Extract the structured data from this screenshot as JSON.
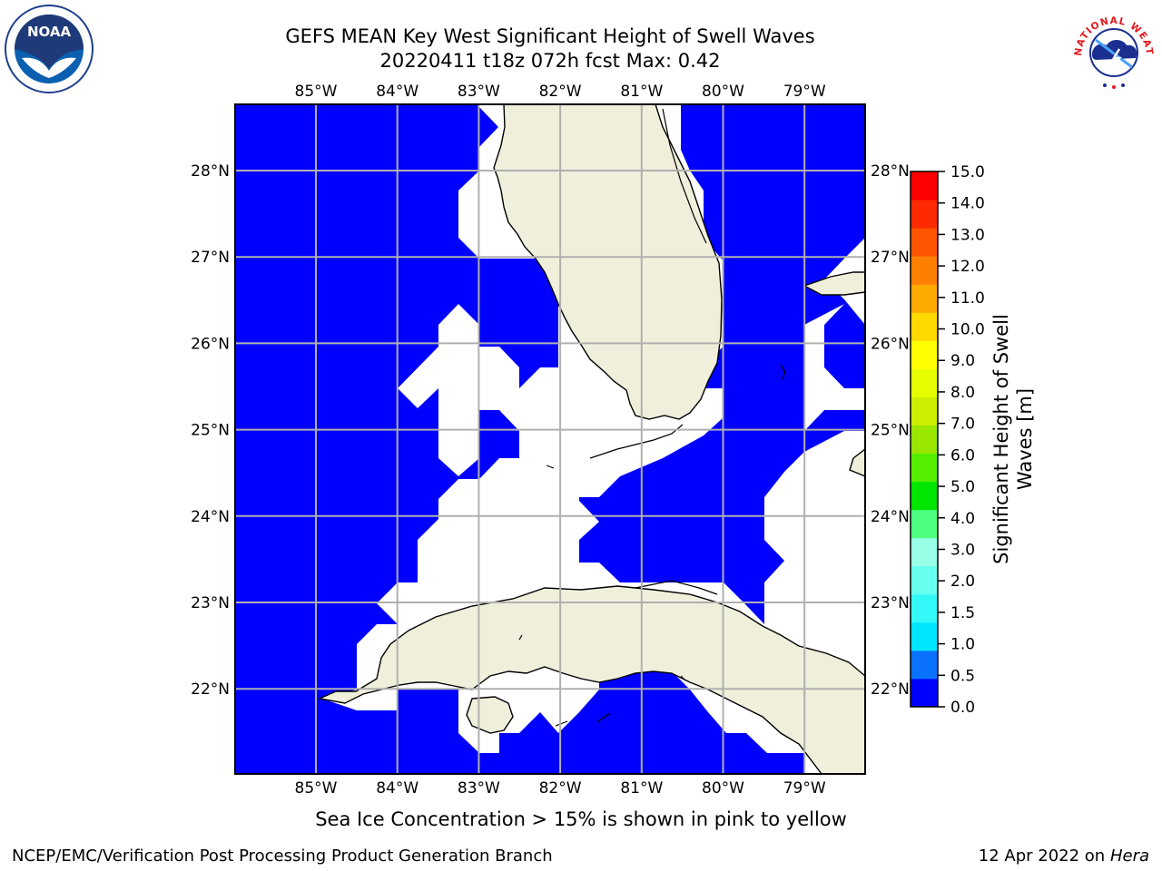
{
  "title": {
    "line1": "GEFS MEAN Key West Significant Height of Swell Waves",
    "line2": "20220411 t18z 072h fcst   Max: 0.42"
  },
  "map": {
    "lon_labels": [
      "85°W",
      "84°W",
      "83°W",
      "82°W",
      "81°W",
      "80°W",
      "79°W"
    ],
    "lat_labels": [
      "28°N",
      "27°N",
      "26°N",
      "25°N",
      "24°N",
      "23°N",
      "22°N"
    ],
    "water_color": "#0000ff",
    "land_color": "#efefdc",
    "grid_color": "#b0b0b0"
  },
  "colorbar": {
    "label": "Significant Height of Swell Waves [m]",
    "ticks": [
      "0.0",
      "0.5",
      "1.0",
      "1.5",
      "2.0",
      "3.0",
      "4.0",
      "5.0",
      "6.0",
      "7.0",
      "8.0",
      "9.0",
      "10.0",
      "11.0",
      "12.0",
      "13.0",
      "14.0",
      "15.0"
    ],
    "colors": [
      "#0000ff",
      "#0a72ff",
      "#00e6ff",
      "#33f8f8",
      "#66fff0",
      "#99ffe6",
      "#4dff80",
      "#00e600",
      "#55ee00",
      "#99e600",
      "#ccee00",
      "#e6ff00",
      "#ffff00",
      "#ffd900",
      "#ffaa00",
      "#ff8000",
      "#ff5500",
      "#ff2a00",
      "#ff0000"
    ]
  },
  "subtitle": "Sea Ice Concentration > 15% is shown in pink to yellow",
  "footer": {
    "left": "NCEP/EMC/Verification Post Processing Product Generation Branch",
    "date": "12 Apr 2022 on ",
    "machine": "Hera"
  },
  "logos": {
    "noaa_text": "NOAA",
    "nws_text": "NATIONAL WEATHER SERVICE"
  }
}
